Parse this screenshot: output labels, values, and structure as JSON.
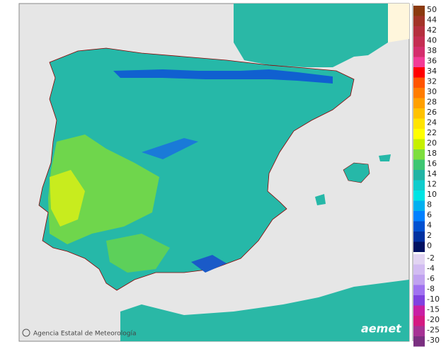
{
  "map": {
    "credit": "Agencia Estatal de Meteorología",
    "logo": "aemet",
    "legend": [
      {
        "label": 50,
        "color": "#8b3a0f"
      },
      {
        "label": 44,
        "color": "#a23428"
      },
      {
        "label": 42,
        "color": "#b4303e"
      },
      {
        "label": 40,
        "color": "#c42e52"
      },
      {
        "label": 38,
        "color": "#d42e6c"
      },
      {
        "label": 36,
        "color": "#f23c96"
      },
      {
        "label": 34,
        "color": "#ff0000"
      },
      {
        "label": 32,
        "color": "#ff5400"
      },
      {
        "label": 30,
        "color": "#ff7c00"
      },
      {
        "label": 28,
        "color": "#ffa000"
      },
      {
        "label": 26,
        "color": "#ffc200"
      },
      {
        "label": 24,
        "color": "#ffe400"
      },
      {
        "label": 22,
        "color": "#ffff00"
      },
      {
        "label": 20,
        "color": "#c6f000"
      },
      {
        "label": 18,
        "color": "#7ede3e"
      },
      {
        "label": 16,
        "color": "#3ec672"
      },
      {
        "label": 14,
        "color": "#22b4a4"
      },
      {
        "label": 12,
        "color": "#10cccc"
      },
      {
        "label": 10,
        "color": "#00e4e4"
      },
      {
        "label": 8,
        "color": "#00b0f0"
      },
      {
        "label": 6,
        "color": "#0080ff"
      },
      {
        "label": 4,
        "color": "#0050d0"
      },
      {
        "label": 2,
        "color": "#0030a0"
      },
      {
        "label": 0,
        "color": "#001060"
      },
      {
        "label": -2,
        "color": "#e2d4f2"
      },
      {
        "label": -4,
        "color": "#d2bcf2"
      },
      {
        "label": -6,
        "color": "#c0a2f0"
      },
      {
        "label": -8,
        "color": "#a072f0"
      },
      {
        "label": -10,
        "color": "#8042e0"
      },
      {
        "label": -15,
        "color": "#c820a4"
      },
      {
        "label": -20,
        "color": "#d41a82"
      },
      {
        "label": -25,
        "color": "#a63294"
      },
      {
        "label": -30,
        "color": "#7a3080"
      }
    ]
  }
}
